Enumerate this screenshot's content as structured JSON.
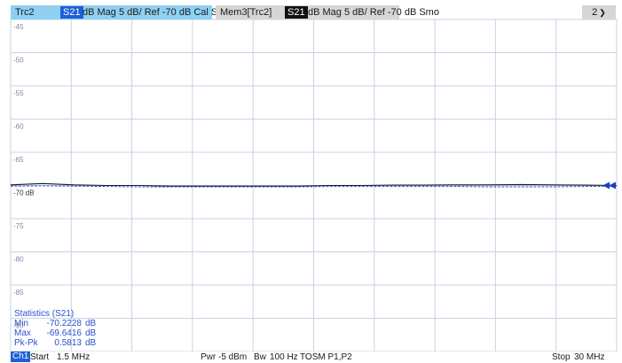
{
  "header": {
    "trace_active": {
      "name": "Trc2",
      "param": "S21",
      "info": "dB Mag   5 dB/ Ref -70 dB   Cal Smo"
    },
    "trace_memory": {
      "name": "Mem3[Trc2]",
      "param": "S21",
      "info": "dB Mag   5 dB/ Ref -70 dB   Smo"
    },
    "channel_select": "2",
    "chevron_icon": "chevron-down-icon"
  },
  "diagram": {
    "y_labels": [
      "-45",
      "-50",
      "-55",
      "-60",
      "-65",
      "-70 dB",
      "-75",
      "-80",
      "-85",
      "-90"
    ],
    "ref_marker_icon": "triangle-left-icon",
    "colors": {
      "trace": "#1a1a1a",
      "memory": "#2a50d0",
      "grid": "#c9d3e3",
      "marker": "#1d3fc0"
    }
  },
  "chart_data": {
    "type": "line",
    "xlim": [
      1.5,
      30
    ],
    "ylim": [
      -95,
      -45
    ],
    "series": [
      {
        "x": [
          1.5,
          3,
          4.5,
          6,
          7.5,
          9,
          10.5,
          12,
          13.5,
          15,
          16.5,
          18,
          19.5,
          21,
          22.5,
          24,
          25.5,
          27,
          28.5,
          30
        ],
        "y": [
          -69.9,
          -69.7,
          -69.9,
          -70.0,
          -70.0,
          -70.1,
          -70.1,
          -70.1,
          -70.1,
          -70.1,
          -70.0,
          -70.0,
          -69.95,
          -69.95,
          -69.9,
          -69.9,
          -69.85,
          -69.9,
          -69.95,
          -70.0
        ]
      },
      {
        "x": [
          1.5,
          3,
          4.5,
          6,
          7.5,
          9,
          10.5,
          12,
          13.5,
          15,
          16.5,
          18,
          19.5,
          21,
          22.5,
          24,
          25.5,
          27,
          28.5,
          30
        ],
        "y": [
          -70.1,
          -70.05,
          -70.1,
          -70.15,
          -70.2,
          -70.2,
          -70.2,
          -70.2,
          -70.2,
          -70.2,
          -70.15,
          -70.15,
          -70.15,
          -70.15,
          -70.15,
          -70.2,
          -70.2,
          -70.2,
          -70.15,
          -70.1
        ]
      }
    ]
  },
  "statistics": {
    "title": "Statistics  (S21)",
    "rows": [
      {
        "label": "Min",
        "value": "-70.2228",
        "unit": "dB"
      },
      {
        "label": "Max",
        "value": "-69.6416",
        "unit": "dB"
      },
      {
        "label": "Pk-Pk",
        "value": "0.5813",
        "unit": "dB"
      }
    ]
  },
  "status_bar": {
    "channel": "Ch1",
    "start_label": "Start",
    "start_value": "1.5 MHz",
    "pwr_label": "Pwr",
    "pwr_value": "-5 dBm",
    "bw_label": "Bw",
    "bw_value": "100 Hz",
    "cal": "TOSM P1,P2",
    "stop_label": "Stop",
    "stop_value": "30 MHz"
  }
}
